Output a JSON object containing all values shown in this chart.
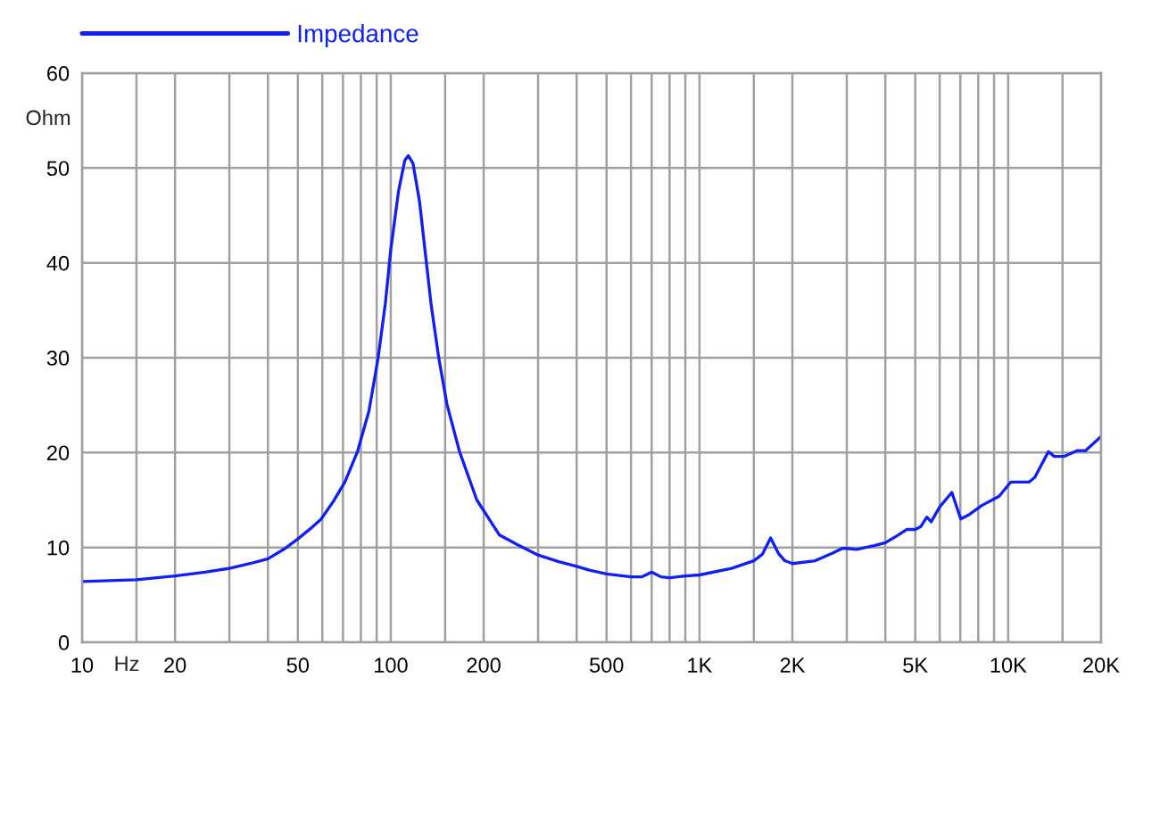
{
  "chart_data": {
    "type": "line",
    "xlabel": "Hz",
    "ylabel": "Ohm",
    "log": "x",
    "grid": true,
    "legend": "top left",
    "xlim": [
      10,
      20000
    ],
    "ylim": [
      0,
      60
    ],
    "xticks": [
      10,
      {
        "value": 15,
        "label": null
      },
      20,
      {
        "value": 30,
        "label": null
      },
      {
        "value": 40,
        "label": null
      },
      50,
      {
        "value": 60,
        "label": null
      },
      {
        "value": 70,
        "label": null
      },
      {
        "value": 80,
        "label": null
      },
      {
        "value": 90,
        "label": null
      },
      100,
      {
        "value": 150,
        "label": null
      },
      200,
      {
        "value": 300,
        "label": null
      },
      {
        "value": 400,
        "label": null
      },
      500,
      {
        "value": 600,
        "label": null
      },
      {
        "value": 700,
        "label": null
      },
      {
        "value": 800,
        "label": null
      },
      {
        "value": 900,
        "label": null
      },
      {
        "value": 1000,
        "label": "1K"
      },
      {
        "value": 1500,
        "label": null
      },
      {
        "value": 2000,
        "label": "2K"
      },
      {
        "value": 3000,
        "label": null
      },
      {
        "value": 4000,
        "label": null
      },
      {
        "value": 5000,
        "label": "5K"
      },
      {
        "value": 6000,
        "label": null
      },
      {
        "value": 7000,
        "label": null
      },
      {
        "value": 8000,
        "label": null
      },
      {
        "value": 9000,
        "label": null
      },
      {
        "value": 10000,
        "label": "10K"
      },
      {
        "value": 15000,
        "label": null
      },
      {
        "value": 20000,
        "label": "20K"
      }
    ],
    "yticks": [
      0,
      10,
      20,
      30,
      40,
      50,
      60
    ],
    "x": [
      10,
      15,
      20,
      25,
      30,
      35,
      40,
      45,
      50,
      55,
      59.5,
      65,
      71,
      78,
      85,
      91,
      96,
      100,
      106,
      111,
      114,
      118,
      124,
      129,
      135,
      143,
      152,
      167,
      190,
      225,
      257,
      300,
      350,
      400,
      440,
      500,
      600,
      650,
      700,
      750,
      800,
      900,
      1000,
      1270,
      1500,
      1600,
      1700,
      1800,
      1890,
      2000,
      2370,
      2700,
      2900,
      3000,
      3230,
      3680,
      4000,
      4400,
      4700,
      5000,
      5210,
      5450,
      5630,
      6010,
      6570,
      7020,
      7510,
      8190,
      9350,
      10200,
      11700,
      12200,
      13500,
      14100,
      15200,
      16700,
      17800,
      20000
    ],
    "series": [
      {
        "name": "Impedance",
        "color": "#1020f0",
        "values": [
          6.4,
          6.6,
          7.0,
          7.4,
          7.8,
          8.3,
          8.8,
          9.8,
          10.9,
          12.0,
          13.0,
          14.8,
          16.9,
          20.1,
          24.4,
          30.0,
          35.7,
          41.4,
          47.6,
          50.8,
          51.3,
          50.5,
          46.4,
          41.4,
          35.7,
          30.0,
          25.1,
          20.1,
          15.0,
          11.3,
          10.3,
          9.2,
          8.5,
          8.0,
          7.6,
          7.2,
          6.9,
          6.9,
          7.4,
          6.9,
          6.8,
          7.0,
          7.1,
          7.8,
          8.6,
          9.3,
          11.0,
          9.4,
          8.6,
          8.3,
          8.6,
          9.4,
          9.9,
          9.9,
          9.8,
          10.2,
          10.5,
          11.3,
          11.9,
          11.9,
          12.2,
          13.2,
          12.7,
          14.3,
          15.8,
          13.0,
          13.5,
          14.4,
          15.4,
          16.9,
          16.9,
          17.4,
          20.1,
          19.6,
          19.6,
          20.2,
          20.2,
          21.7
        ]
      }
    ]
  }
}
